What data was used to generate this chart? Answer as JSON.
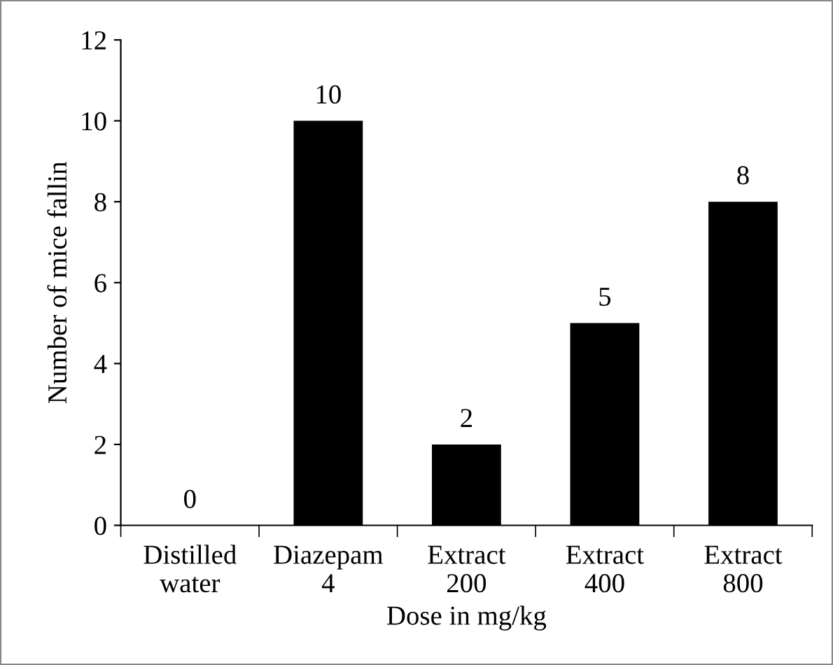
{
  "chart_data": {
    "type": "bar",
    "xlabel": "Dose in mg/kg",
    "ylabel": "Number of mice fallin",
    "categories": [
      "Distilled\nwater",
      "Diazepam\n4",
      "Extract\n200",
      "Extract\n400",
      "Extract\n800"
    ],
    "values": [
      0,
      10,
      2,
      5,
      8
    ],
    "color": "#000000",
    "ylim": [
      0,
      12
    ],
    "yticks": [
      0,
      2,
      4,
      6,
      8,
      10,
      12
    ],
    "grid": false,
    "data_labels": true
  }
}
